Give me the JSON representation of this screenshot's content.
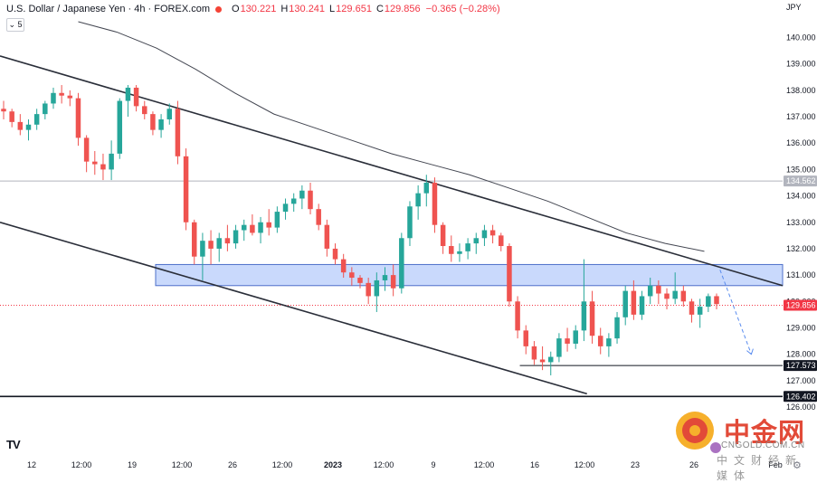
{
  "header": {
    "symbol": "U.S. Dollar / Japanese Yen · 4h · FOREX.com",
    "o_label": "O",
    "o_value": "130.221",
    "h_label": "H",
    "h_value": "130.241",
    "l_label": "L",
    "l_value": "129.651",
    "c_label": "C",
    "c_value": "129.856",
    "change": "−0.365 (−0.28%)",
    "indicator_toggle": "5"
  },
  "axis": {
    "currency": "JPY"
  },
  "watermark": {
    "name": "中金网",
    "url": "CNGOLD.COM.CN",
    "subtitle": "中文财经新媒体"
  },
  "colors": {
    "up": "#26a69a",
    "down": "#ef5350",
    "zone": "#bcd0fb",
    "zone_edge": "#2962ff",
    "marker": "#f23645"
  },
  "icons": {
    "logo": "tradingview-logo-icon",
    "settings": "settings-icon",
    "watermark": "cngold-logo-icon"
  },
  "chart_data": {
    "type": "candlestick",
    "timeframe": "4h",
    "y_range": [
      126.0,
      140.6
    ],
    "y_ticks": [
      "140.000",
      "139.000",
      "138.000",
      "137.000",
      "136.000",
      "135.000",
      "134.000",
      "133.000",
      "132.000",
      "131.000",
      "130.000",
      "129.000",
      "128.000",
      "127.000",
      "126.000"
    ],
    "x_ticks": [
      "12",
      "12:00",
      "19",
      "12:00",
      "26",
      "12:00",
      "2023",
      "12:00",
      "9",
      "12:00",
      "16",
      "12:00",
      "23",
      "26",
      "Feb"
    ],
    "price_labels": [
      {
        "price": 134.562,
        "label": "134.562",
        "style": "gray"
      },
      {
        "price": 129.856,
        "label": "129.856",
        "style": "current"
      },
      {
        "price": 127.573,
        "label": "127.573",
        "style": "dark"
      },
      {
        "price": 126.402,
        "label": "126.402",
        "style": "dark"
      }
    ],
    "horizontal_lines": [
      {
        "price": 134.562,
        "style": "gray"
      },
      {
        "price": 127.573,
        "style": "dark",
        "from_fraction": 0.67
      },
      {
        "price": 126.402,
        "style": "thick"
      }
    ],
    "current_price": 129.856,
    "support_zone": {
      "low": 130.6,
      "high": 131.4
    },
    "channel": {
      "upper": [
        {
          "t": 0,
          "p": 139.3
        },
        {
          "t": 100,
          "p": 130.6
        }
      ],
      "lower": [
        {
          "t": 0,
          "p": 133.0
        },
        {
          "t": 75,
          "p": 126.5
        }
      ]
    },
    "moving_average": [
      {
        "t": 10,
        "p": 140.6
      },
      {
        "t": 15,
        "p": 140.2
      },
      {
        "t": 20,
        "p": 139.6
      },
      {
        "t": 25,
        "p": 138.8
      },
      {
        "t": 30,
        "p": 137.9
      },
      {
        "t": 35,
        "p": 137.1
      },
      {
        "t": 40,
        "p": 136.6
      },
      {
        "t": 45,
        "p": 136.1
      },
      {
        "t": 50,
        "p": 135.6
      },
      {
        "t": 55,
        "p": 135.2
      },
      {
        "t": 60,
        "p": 134.8
      },
      {
        "t": 65,
        "p": 134.3
      },
      {
        "t": 70,
        "p": 133.8
      },
      {
        "t": 75,
        "p": 133.2
      },
      {
        "t": 80,
        "p": 132.6
      },
      {
        "t": 85,
        "p": 132.2
      },
      {
        "t": 90,
        "p": 131.9
      }
    ],
    "projection": [
      {
        "t": 92,
        "p": 131.2
      },
      {
        "t": 96,
        "p": 128.0
      }
    ],
    "candles": [
      [
        137.3,
        137.6,
        136.9,
        137.2
      ],
      [
        137.2,
        137.3,
        136.6,
        136.8
      ],
      [
        136.8,
        137.1,
        136.3,
        136.5
      ],
      [
        136.5,
        136.9,
        136.1,
        136.7
      ],
      [
        136.7,
        137.3,
        136.5,
        137.1
      ],
      [
        137.1,
        137.6,
        136.9,
        137.5
      ],
      [
        137.5,
        138.1,
        137.3,
        137.9
      ],
      [
        137.9,
        138.2,
        137.5,
        137.8
      ],
      [
        137.8,
        138.0,
        137.4,
        137.7
      ],
      [
        137.7,
        137.9,
        135.9,
        136.2
      ],
      [
        136.2,
        136.3,
        134.9,
        135.3
      ],
      [
        135.3,
        135.7,
        134.8,
        135.2
      ],
      [
        135.2,
        135.6,
        134.6,
        135.0
      ],
      [
        135.0,
        136.1,
        134.6,
        135.6
      ],
      [
        135.6,
        137.7,
        135.4,
        137.6
      ],
      [
        137.6,
        138.2,
        137.0,
        138.1
      ],
      [
        138.1,
        138.2,
        137.2,
        137.4
      ],
      [
        137.4,
        137.6,
        136.9,
        137.1
      ],
      [
        137.1,
        137.2,
        136.3,
        136.5
      ],
      [
        136.5,
        137.1,
        136.2,
        136.9
      ],
      [
        136.9,
        137.5,
        136.7,
        137.3
      ],
      [
        137.3,
        137.6,
        135.2,
        135.5
      ],
      [
        135.5,
        135.8,
        132.7,
        133.0
      ],
      [
        133.0,
        133.1,
        131.4,
        131.7
      ],
      [
        131.7,
        132.6,
        130.8,
        132.3
      ],
      [
        132.3,
        132.7,
        131.4,
        132.0
      ],
      [
        132.0,
        132.6,
        131.5,
        132.4
      ],
      [
        132.4,
        132.9,
        131.9,
        132.2
      ],
      [
        132.2,
        132.9,
        132.0,
        132.7
      ],
      [
        132.7,
        133.1,
        132.3,
        132.9
      ],
      [
        132.9,
        133.3,
        132.5,
        132.6
      ],
      [
        132.6,
        133.2,
        132.2,
        133.0
      ],
      [
        133.0,
        133.5,
        132.5,
        132.8
      ],
      [
        132.8,
        133.6,
        132.6,
        133.4
      ],
      [
        133.4,
        133.9,
        133.1,
        133.7
      ],
      [
        133.7,
        134.1,
        133.4,
        133.9
      ],
      [
        133.9,
        134.4,
        133.5,
        134.2
      ],
      [
        134.2,
        134.5,
        133.3,
        133.5
      ],
      [
        133.5,
        133.7,
        132.7,
        132.9
      ],
      [
        132.9,
        133.1,
        131.7,
        132.0
      ],
      [
        132.0,
        132.2,
        131.4,
        131.6
      ],
      [
        131.6,
        131.8,
        130.9,
        131.1
      ],
      [
        131.1,
        131.3,
        130.6,
        130.9
      ],
      [
        130.9,
        131.0,
        130.5,
        130.7
      ],
      [
        130.7,
        130.9,
        129.9,
        130.2
      ],
      [
        130.2,
        131.1,
        129.6,
        130.8
      ],
      [
        130.8,
        131.3,
        130.4,
        131.0
      ],
      [
        131.0,
        131.4,
        130.2,
        130.5
      ],
      [
        130.5,
        132.6,
        130.3,
        132.4
      ],
      [
        132.4,
        133.8,
        132.1,
        133.6
      ],
      [
        133.6,
        134.4,
        133.1,
        134.1
      ],
      [
        134.1,
        134.8,
        133.6,
        134.5
      ],
      [
        134.5,
        134.7,
        132.6,
        132.9
      ],
      [
        132.9,
        133.0,
        131.8,
        132.1
      ],
      [
        132.1,
        132.5,
        131.5,
        131.8
      ],
      [
        131.8,
        132.2,
        131.5,
        131.9
      ],
      [
        131.9,
        132.4,
        131.6,
        132.2
      ],
      [
        132.2,
        132.6,
        131.8,
        132.4
      ],
      [
        132.4,
        132.9,
        132.1,
        132.7
      ],
      [
        132.7,
        132.9,
        132.2,
        132.5
      ],
      [
        132.5,
        132.6,
        131.9,
        132.1
      ],
      [
        132.1,
        132.2,
        129.8,
        130.0
      ],
      [
        130.0,
        130.2,
        128.6,
        128.9
      ],
      [
        128.9,
        129.1,
        128.0,
        128.3
      ],
      [
        128.3,
        128.5,
        127.6,
        127.8
      ],
      [
        127.8,
        128.3,
        127.4,
        127.7
      ],
      [
        127.7,
        128.1,
        127.2,
        127.9
      ],
      [
        127.9,
        128.8,
        127.7,
        128.6
      ],
      [
        128.6,
        129.0,
        128.1,
        128.4
      ],
      [
        128.4,
        129.1,
        128.2,
        128.9
      ],
      [
        128.9,
        131.6,
        128.5,
        130.0
      ],
      [
        130.0,
        130.4,
        128.4,
        128.7
      ],
      [
        128.7,
        129.0,
        128.0,
        128.3
      ],
      [
        128.3,
        128.8,
        127.9,
        128.6
      ],
      [
        128.6,
        129.6,
        128.4,
        129.4
      ],
      [
        129.4,
        130.6,
        129.1,
        130.4
      ],
      [
        130.4,
        130.8,
        129.3,
        129.5
      ],
      [
        129.5,
        130.4,
        129.3,
        130.2
      ],
      [
        130.2,
        130.9,
        129.9,
        130.6
      ],
      [
        130.6,
        130.8,
        129.9,
        130.3
      ],
      [
        130.3,
        130.5,
        129.7,
        130.1
      ],
      [
        130.1,
        131.1,
        129.9,
        130.4
      ],
      [
        130.4,
        130.6,
        129.8,
        130.0
      ],
      [
        130.0,
        130.1,
        129.2,
        129.5
      ],
      [
        129.5,
        130.1,
        129.0,
        129.8
      ],
      [
        129.8,
        130.3,
        129.6,
        130.2
      ],
      [
        130.2,
        130.3,
        129.7,
        129.9
      ]
    ]
  }
}
